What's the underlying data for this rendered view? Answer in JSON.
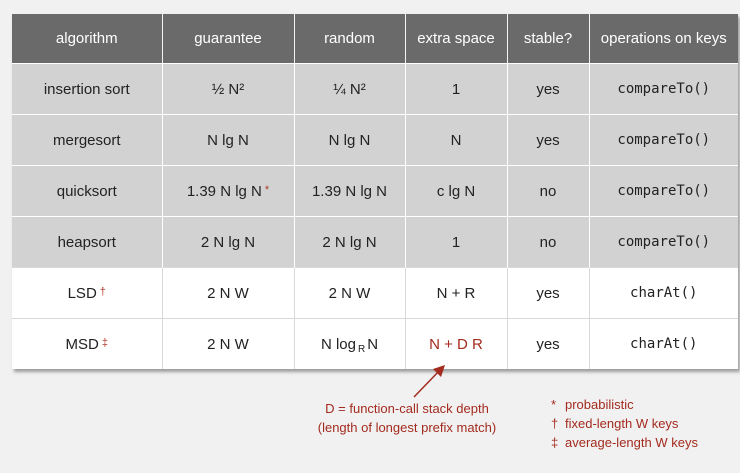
{
  "table": {
    "headers": [
      "algorithm",
      "guarantee",
      "random",
      "extra space",
      "stable?",
      "operations on keys"
    ],
    "rows": [
      {
        "algorithm": "insertion sort",
        "mark": "",
        "guarantee": "½ N²",
        "guarantee_mark": "",
        "random": "¼ N²",
        "random_base": "",
        "random_sub": "",
        "random_tail": "",
        "extra_space": "1",
        "stable": "yes",
        "operations": "compareTo()",
        "style": "grey"
      },
      {
        "algorithm": "mergesort",
        "mark": "",
        "guarantee": "N lg N",
        "guarantee_mark": "",
        "random": "N lg N",
        "random_base": "",
        "random_sub": "",
        "random_tail": "",
        "extra_space": "N",
        "stable": "yes",
        "operations": "compareTo()",
        "style": "grey"
      },
      {
        "algorithm": "quicksort",
        "mark": "",
        "guarantee": "1.39 N lg N",
        "guarantee_mark": "*",
        "random": "1.39 N lg N",
        "random_base": "",
        "random_sub": "",
        "random_tail": "",
        "extra_space": "c lg N",
        "stable": "no",
        "operations": "compareTo()",
        "style": "grey"
      },
      {
        "algorithm": "heapsort",
        "mark": "",
        "guarantee": "2 N lg N",
        "guarantee_mark": "",
        "random": "2 N lg N",
        "random_base": "",
        "random_sub": "",
        "random_tail": "",
        "extra_space": "1",
        "stable": "no",
        "operations": "compareTo()",
        "style": "grey"
      },
      {
        "algorithm": "LSD",
        "mark": "†",
        "guarantee": "2 N W",
        "guarantee_mark": "",
        "random": "2 N W",
        "random_base": "",
        "random_sub": "",
        "random_tail": "",
        "extra_space": "N + R",
        "stable": "yes",
        "operations": "charAt()",
        "style": "white"
      },
      {
        "algorithm": "MSD",
        "mark": "‡",
        "guarantee": "2 N W",
        "guarantee_mark": "",
        "random": "",
        "random_base": "N log",
        "random_sub": "R",
        "random_tail": "N",
        "extra_space": "N + D R",
        "stable": "yes",
        "operations": "charAt()",
        "style": "white",
        "extra_space_highlight": true
      }
    ]
  },
  "annotation": {
    "line1": "D = function-call stack depth",
    "line2": "(length of longest prefix match)"
  },
  "footnotes": [
    {
      "mark": "*",
      "text": "probabilistic"
    },
    {
      "mark": "†",
      "text": "fixed-length W keys"
    },
    {
      "mark": "‡",
      "text": "average-length W keys"
    }
  ],
  "colors": {
    "header_bg": "#6a6a6a",
    "grey_row_bg": "#d2d2d2",
    "white_row_bg": "#ffffff",
    "accent_red": "#a32b1f"
  }
}
